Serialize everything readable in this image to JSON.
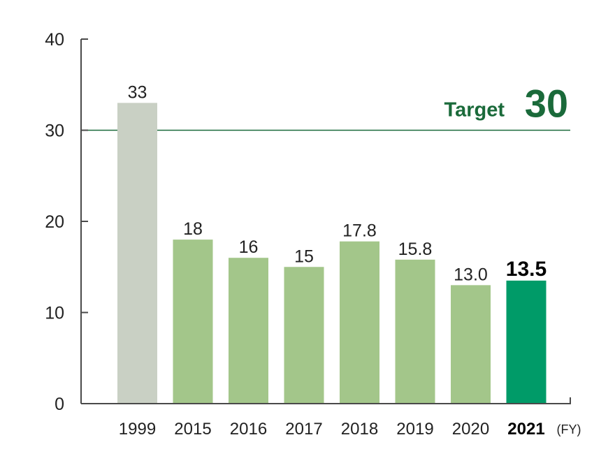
{
  "chart_data": {
    "type": "bar",
    "categories": [
      "1999",
      "2015",
      "2016",
      "2017",
      "2018",
      "2019",
      "2020",
      "2021"
    ],
    "values": [
      33,
      18,
      16,
      15,
      17.8,
      15.8,
      13.0,
      13.5
    ],
    "value_labels": [
      "33",
      "18",
      "16",
      "15",
      "17.8",
      "15.8",
      "13.0",
      "13.5"
    ],
    "x_unit": "(FY)",
    "ylim": [
      0,
      40
    ],
    "yticks": [
      0,
      10,
      20,
      30,
      40
    ],
    "highlight_index": 7,
    "target": {
      "label": "Target",
      "value": 30,
      "value_label": "30"
    },
    "grid": false,
    "colors": {
      "baseline_bar": "#c9d0c4",
      "bar": "#a3c68a",
      "highlight_bar": "#009b68",
      "target": "#1a6a3a",
      "axis": "#4a4a4a",
      "text": "#222222"
    }
  }
}
